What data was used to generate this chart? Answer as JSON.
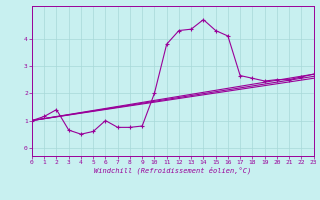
{
  "xlabel": "Windchill (Refroidissement éolien,°C)",
  "bg_color": "#c8f0f0",
  "line_color": "#990099",
  "grid_color": "#a8d8d8",
  "xlim": [
    0,
    23
  ],
  "ylim": [
    -0.3,
    5.2
  ],
  "xticks": [
    0,
    1,
    2,
    3,
    4,
    5,
    6,
    7,
    8,
    9,
    10,
    11,
    12,
    13,
    14,
    15,
    16,
    17,
    18,
    19,
    20,
    21,
    22,
    23
  ],
  "yticks": [
    0,
    1,
    2,
    3,
    4
  ],
  "lines": [
    {
      "x": [
        0,
        1,
        2,
        3,
        4,
        5,
        6,
        7,
        8,
        9,
        10,
        11,
        12,
        13,
        14,
        15,
        16,
        17,
        18,
        19,
        20,
        21,
        22,
        23
      ],
      "y": [
        1.0,
        1.15,
        1.4,
        0.65,
        0.5,
        0.6,
        1.0,
        0.75,
        0.75,
        0.8,
        2.0,
        3.8,
        4.3,
        4.35,
        4.7,
        4.3,
        4.1,
        2.65,
        2.55,
        2.45,
        2.5,
        2.5,
        2.6,
        2.7
      ]
    },
    {
      "x": [
        0,
        23
      ],
      "y": [
        1.0,
        2.7
      ]
    },
    {
      "x": [
        0,
        23
      ],
      "y": [
        1.0,
        2.62
      ]
    },
    {
      "x": [
        0,
        23
      ],
      "y": [
        1.0,
        2.55
      ]
    }
  ]
}
